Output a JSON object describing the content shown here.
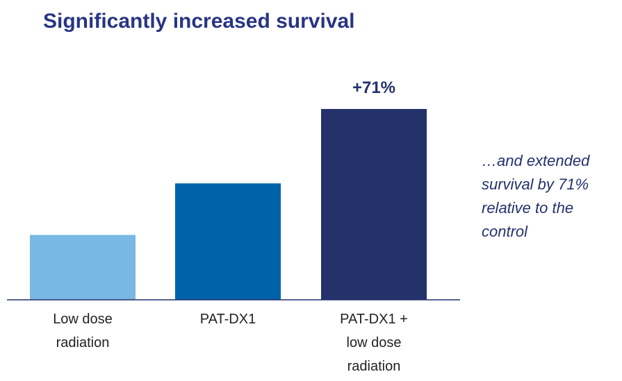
{
  "chart_data": {
    "type": "bar",
    "title": "Significantly increased survival",
    "categories": [
      "Low dose radiation",
      "PAT-DX1",
      "PAT-DX1 + low dose radiation"
    ],
    "values": [
      34,
      61,
      100
    ],
    "colors": [
      "#7ab8e4",
      "#0062a8",
      "#24316b"
    ],
    "ylim": [
      0,
      100
    ],
    "annotation": "+71%",
    "side_note": [
      "…and extended",
      "survival by 71%",
      "relative to the",
      "control"
    ]
  }
}
